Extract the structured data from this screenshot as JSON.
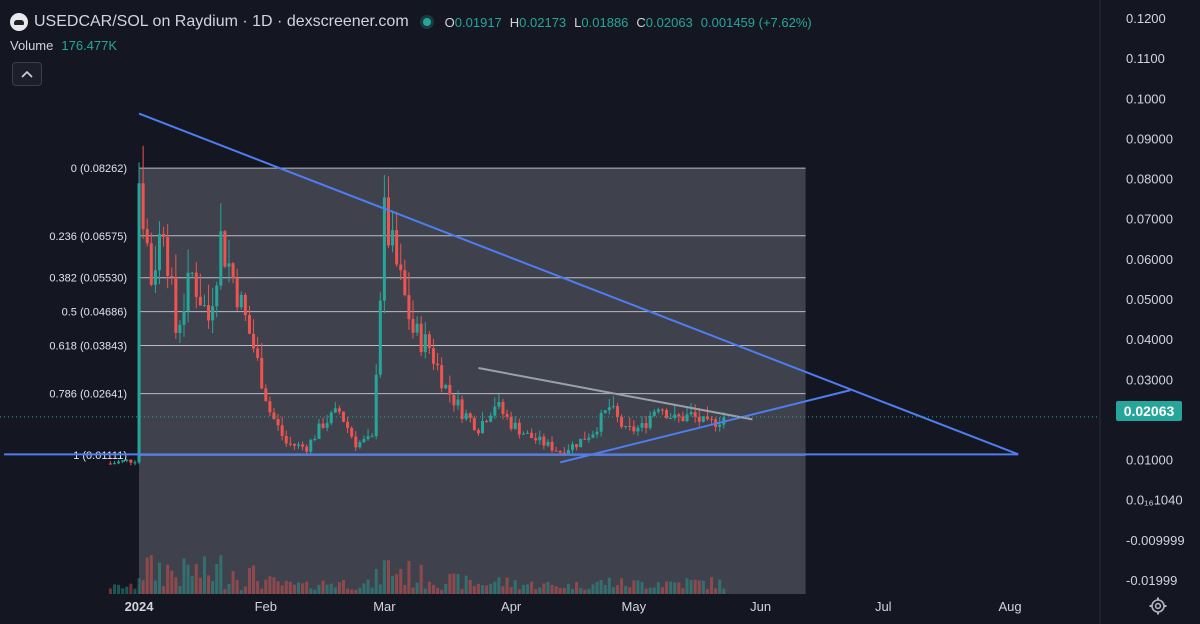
{
  "header": {
    "pair_title": "USEDCAR/SOL on Raydium · 1D · dexscreener.com",
    "ohlc": [
      {
        "label": "O",
        "value": "0.01917"
      },
      {
        "label": "H",
        "value": "0.02173"
      },
      {
        "label": "L",
        "value": "0.01886"
      },
      {
        "label": "C",
        "value": "0.02063"
      }
    ],
    "change": "0.001459 (+7.62%)",
    "volume_label": "Volume",
    "volume_value": "176.477K",
    "collapse_icon": "chevron-up-icon"
  },
  "last_price_label": "0.02063",
  "colors": {
    "up": "#26a69a",
    "down": "#ef5350",
    "trendline": "#4f7df0",
    "background": "#141722"
  },
  "chart_data": {
    "type": "candlestick",
    "x_ticks": [
      "2024",
      "Feb",
      "Mar",
      "Apr",
      "May",
      "Jun",
      "Jul",
      "Aug"
    ],
    "x_tick_dates": [
      "2024-01-01",
      "2024-02-01",
      "2024-03-01",
      "2024-04-01",
      "2024-05-01",
      "2024-06-01",
      "2024-07-01",
      "2024-08-01"
    ],
    "x_range": [
      "2023-11-28",
      "2024-08-23"
    ],
    "y_ticks": [
      {
        "label": "0.1200",
        "value": 0.12
      },
      {
        "label": "0.1100",
        "value": 0.11
      },
      {
        "label": "0.1000",
        "value": 0.1
      },
      {
        "label": "0.09000",
        "value": 0.09
      },
      {
        "label": "0.08000",
        "value": 0.08
      },
      {
        "label": "0.07000",
        "value": 0.07
      },
      {
        "label": "0.06000",
        "value": 0.06
      },
      {
        "label": "0.05000",
        "value": 0.05
      },
      {
        "label": "0.04000",
        "value": 0.04
      },
      {
        "label": "0.03000",
        "value": 0.03
      },
      {
        "label": "0.01000",
        "value": 0.01
      },
      {
        "label": "0.0₁₆1040",
        "value": 0.0
      },
      {
        "label": "-0.009999",
        "value": -0.01
      },
      {
        "label": "-0.01999",
        "value": -0.02
      }
    ],
    "y_range": [
      -0.0235,
      0.1245
    ],
    "fib_retracement": {
      "start_date": "2024-01-01",
      "end_date": "2024-06-12",
      "levels": [
        {
          "label": "0 (0.08262)",
          "value": 0.08262
        },
        {
          "label": "0.236 (0.06575)",
          "value": 0.06575
        },
        {
          "label": "0.382 (0.05530)",
          "value": 0.0553
        },
        {
          "label": "0.5 (0.04686)",
          "value": 0.04686
        },
        {
          "label": "0.618 (0.03843)",
          "value": 0.03843
        },
        {
          "label": "0.786 (0.02641)",
          "value": 0.02641
        },
        {
          "label": "1 (0.01111)",
          "value": 0.01111
        }
      ]
    },
    "trendlines": [
      {
        "from": [
          "2024-01-01",
          0.0962
        ],
        "to": [
          "2024-08-03",
          0.0113
        ],
        "color": "#4f7df0"
      },
      {
        "from": [
          "2023-11-29",
          0.0113
        ],
        "to": [
          "2024-08-03",
          0.0113
        ],
        "color": "#4f7df0"
      },
      {
        "from": [
          "2024-04-13",
          0.0093
        ],
        "to": [
          "2024-06-23",
          0.0273
        ],
        "color": "#4f7df0"
      },
      {
        "from": [
          "2024-03-24",
          0.0328
        ],
        "to": [
          "2024-05-30",
          0.02
        ],
        "color": "#9aa0ac"
      }
    ],
    "price_segments": [
      [
        "2023-12-25",
        0.009
      ],
      [
        "2023-12-31",
        0.01
      ],
      [
        "2024-01-01",
        0.08
      ],
      [
        "2024-01-04",
        0.055
      ],
      [
        "2024-01-07",
        0.07
      ],
      [
        "2024-01-10",
        0.042
      ],
      [
        "2024-01-14",
        0.056
      ],
      [
        "2024-01-18",
        0.045
      ],
      [
        "2024-01-21",
        0.065
      ],
      [
        "2024-01-25",
        0.052
      ],
      [
        "2024-01-29",
        0.038
      ],
      [
        "2024-02-02",
        0.022
      ],
      [
        "2024-02-06",
        0.014
      ],
      [
        "2024-02-11",
        0.013
      ],
      [
        "2024-02-15",
        0.019
      ],
      [
        "2024-02-19",
        0.022
      ],
      [
        "2024-02-23",
        0.014
      ],
      [
        "2024-02-27",
        0.015
      ],
      [
        "2024-03-01",
        0.07
      ],
      [
        "2024-03-04",
        0.058
      ],
      [
        "2024-03-08",
        0.042
      ],
      [
        "2024-03-12",
        0.038
      ],
      [
        "2024-03-16",
        0.028
      ],
      [
        "2024-03-20",
        0.022
      ],
      [
        "2024-03-24",
        0.018
      ],
      [
        "2024-03-28",
        0.024
      ],
      [
        "2024-04-01",
        0.019
      ],
      [
        "2024-04-05",
        0.016
      ],
      [
        "2024-04-09",
        0.014
      ],
      [
        "2024-04-13",
        0.012
      ],
      [
        "2024-04-17",
        0.014
      ],
      [
        "2024-04-21",
        0.017
      ],
      [
        "2024-04-25",
        0.023
      ],
      [
        "2024-04-29",
        0.017
      ],
      [
        "2024-05-03",
        0.018
      ],
      [
        "2024-05-07",
        0.024
      ],
      [
        "2024-05-11",
        0.02
      ],
      [
        "2024-05-15",
        0.021
      ],
      [
        "2024-05-19",
        0.0185
      ],
      [
        "2024-05-23",
        0.0206
      ]
    ]
  }
}
